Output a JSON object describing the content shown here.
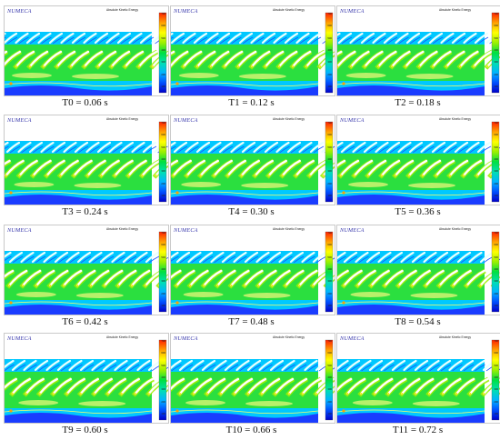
{
  "colors": {
    "palette": [
      "#0000c8",
      "#0050ff",
      "#00b4ff",
      "#00e0b0",
      "#00e040",
      "#9cf000",
      "#ffff00",
      "#ffa000",
      "#ff2000"
    ],
    "upper_band": "#00c8ff",
    "mid_band": "#2bdf3f",
    "wake_band": "#9cf000",
    "hub_band": "#1a3cff",
    "blade": "#ffffff"
  },
  "panel": {
    "logo": "NUMECA",
    "legend_title": "Absolute Kinetic Energy",
    "legend_ticks": [
      "700",
      "600",
      "500",
      "400",
      "300",
      "200",
      "100"
    ]
  },
  "frames": [
    {
      "caption": "T0 = 0.06 s",
      "phase": 0.0
    },
    {
      "caption": "T1 = 0.12 s",
      "phase": 0.08
    },
    {
      "caption": "T2 = 0.18 s",
      "phase": 0.16
    },
    {
      "caption": "T3 = 0.24 s",
      "phase": 0.24
    },
    {
      "caption": "T4 = 0.30 s",
      "phase": 0.32
    },
    {
      "caption": "T5 = 0.36 s",
      "phase": 0.4
    },
    {
      "caption": "T6 = 0.42 s",
      "phase": 0.48
    },
    {
      "caption": "T7 = 0.48 s",
      "phase": 0.56
    },
    {
      "caption": "T8 = 0.54 s",
      "phase": 0.64
    },
    {
      "caption": "T9 = 0.60 s",
      "phase": 0.72
    },
    {
      "caption": "T10 = 0.66 s",
      "phase": 0.8
    },
    {
      "caption": "T11 = 0.72 s",
      "phase": 0.88
    }
  ]
}
